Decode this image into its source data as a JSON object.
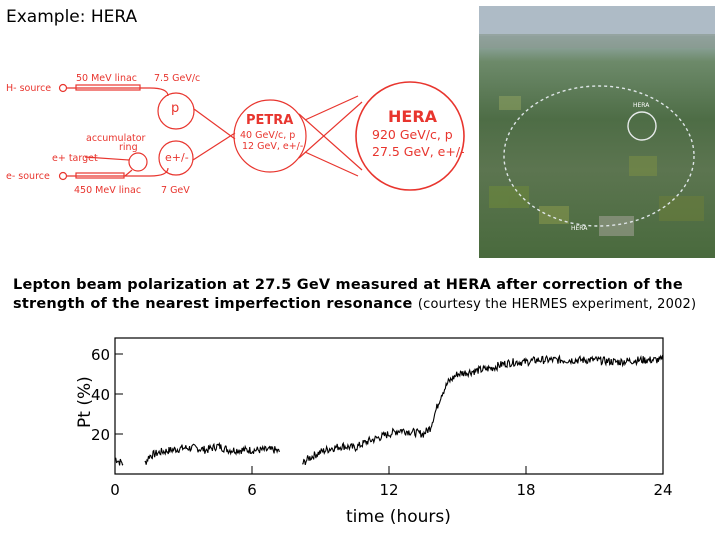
{
  "title": "Example: HERA",
  "diagram": {
    "h_source": "H- source",
    "linac50": "50 MeV linac",
    "p75": "7.5 GeV/c",
    "p_ring": "p",
    "accumulator1": "accumulator",
    "accumulator2": "ring",
    "e_target": "e+ target",
    "e_ring": "e+/-",
    "e_source": "e- source",
    "linac450": "450 MeV linac",
    "e7": "7 GeV",
    "petra_name": "PETRA",
    "petra_l1": "40 GeV/c, p",
    "petra_l2": "12 GeV, e+/-",
    "hera_name": "HERA",
    "hera_l1": "920 GeV/c, p",
    "hera_l2": "27.5 GeV, e+/-",
    "red": "#e8352e"
  },
  "photo_labels": {
    "hera": "HERA",
    "hera_bottom": "HERA"
  },
  "caption": {
    "main": "Lepton beam polarization at 27.5 GeV measured at HERA after correction of the strength of the nearest imperfection  resonance",
    "courtesy": "(courtesy the HERMES experiment, 2002)"
  },
  "chart_data": {
    "type": "line",
    "xlabel": "time (hours)",
    "ylabel": "Pt (%)",
    "xlim": [
      0,
      24
    ],
    "ylim": [
      0,
      68
    ],
    "xticks": [
      0,
      6,
      12,
      18,
      24
    ],
    "yticks": [
      20,
      40,
      60
    ],
    "series": [
      {
        "x": [
          0.0,
          0.1,
          0.2,
          0.3,
          0.35
        ],
        "y": [
          8,
          7,
          6,
          6,
          5
        ]
      },
      {
        "x": [
          1.3,
          1.5,
          2.0,
          2.5,
          3.0,
          3.5,
          4.0,
          4.5,
          5.0,
          5.5,
          6.0,
          6.5,
          7.0,
          7.2
        ],
        "y": [
          5,
          9,
          11,
          12,
          13,
          13,
          12,
          14,
          12,
          12,
          12,
          12,
          12,
          11
        ]
      },
      {
        "x": [
          8.2,
          8.5,
          9.0,
          9.5,
          10.0,
          10.5,
          11.0,
          11.5,
          12.0,
          12.5,
          13.0,
          13.5,
          13.8,
          14.0,
          14.3,
          14.6,
          15.0,
          15.5,
          16.0,
          16.5,
          17.0,
          17.5,
          18.0,
          18.5,
          19.0,
          20.0,
          21.0,
          22.0,
          23.0,
          24.0
        ],
        "y": [
          5,
          8,
          11,
          13,
          14,
          13,
          16,
          18,
          20,
          22,
          21,
          20,
          23,
          30,
          40,
          46,
          50,
          51,
          52,
          53,
          55,
          56,
          56,
          57,
          57,
          57,
          57,
          56,
          57,
          57
        ]
      }
    ]
  }
}
